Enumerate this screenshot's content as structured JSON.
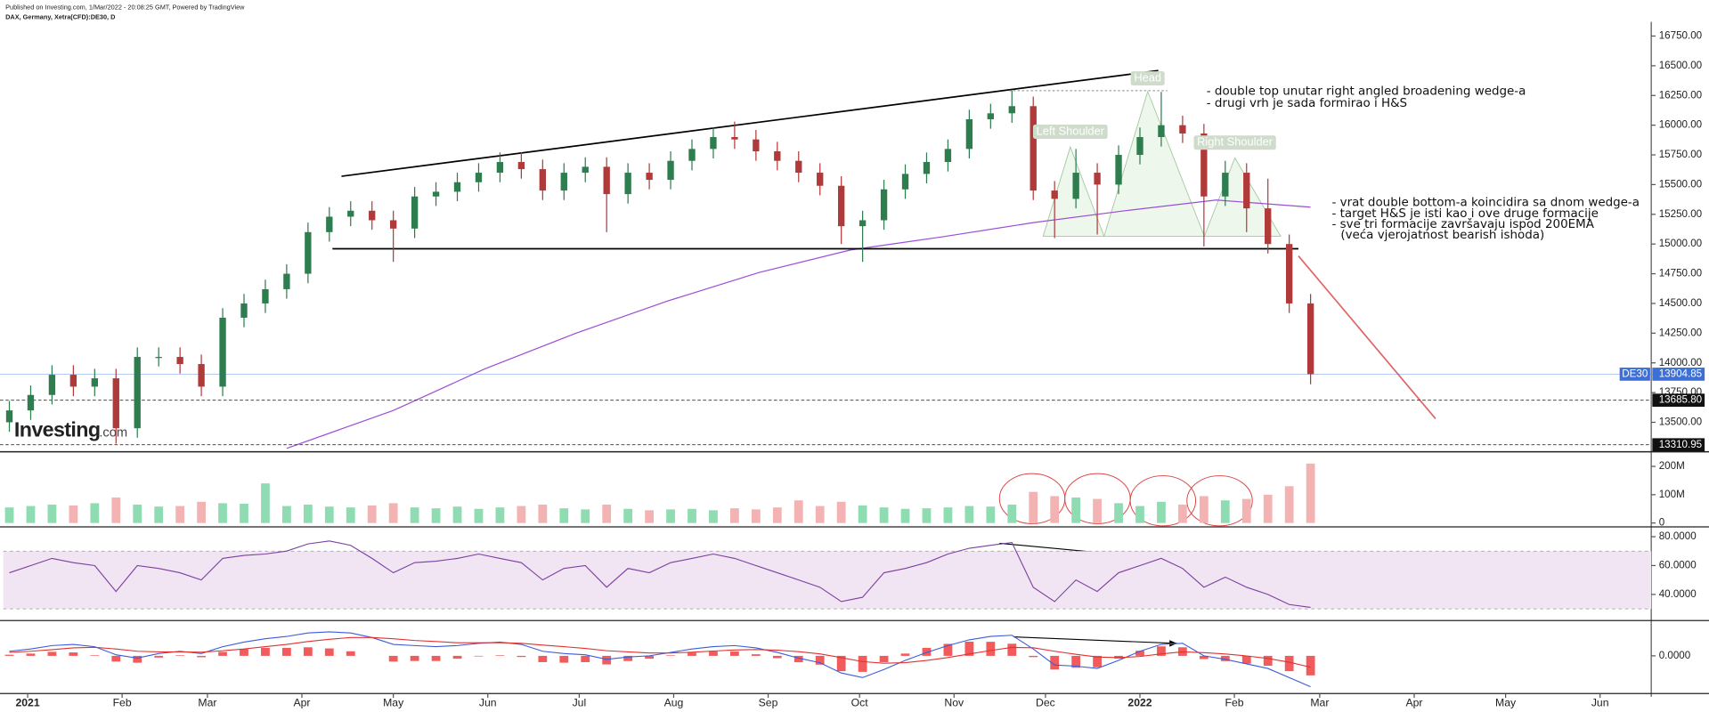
{
  "header": {
    "published": "Published on Investing.com, 1/Mar/2022 - 20:08:25 GMT, Powered by TradingView",
    "symbol": "DAX, Germany, Xetra(CFD):DE30, D"
  },
  "logo": {
    "brand": "Investing",
    "suffix": ".com"
  },
  "chart_data": {
    "type": "candlestick",
    "x": [
      -6,
      1,
      8,
      15,
      22,
      29,
      36,
      43,
      50,
      57,
      64,
      71,
      78,
      85,
      92,
      99,
      106,
      113,
      120,
      127,
      134,
      141,
      148,
      155,
      162,
      169,
      176,
      183,
      190,
      197,
      204,
      211,
      218,
      225,
      232,
      239,
      246,
      253,
      260,
      267,
      274,
      281,
      288,
      295,
      302,
      309,
      316,
      323,
      330,
      337,
      344,
      351,
      358,
      365,
      372,
      379,
      386,
      393,
      400,
      407,
      414,
      421
    ],
    "open": [
      13500,
      13600,
      13730,
      13900,
      13800,
      13870,
      13450,
      14050,
      14050,
      13990,
      13800,
      14380,
      14500,
      14620,
      14750,
      15100,
      15230,
      15280,
      15200,
      15130,
      15400,
      15440,
      15520,
      15600,
      15690,
      15630,
      15450,
      15600,
      15650,
      15420,
      15600,
      15540,
      15700,
      15800,
      15900,
      15880,
      15780,
      15700,
      15600,
      15490,
      15150,
      15200,
      15460,
      15590,
      15690,
      15800,
      16050,
      16100,
      16160,
      15450,
      15380,
      15600,
      15500,
      15750,
      15900,
      16000,
      15930,
      15400,
      15600,
      15300,
      15000,
      14500
    ],
    "high": [
      13680,
      13810,
      13980,
      13980,
      13950,
      13950,
      14130,
      14130,
      14130,
      14070,
      14460,
      14580,
      14700,
      14830,
      15180,
      15310,
      15360,
      15360,
      15280,
      15480,
      15520,
      15600,
      15680,
      15770,
      15770,
      15710,
      15680,
      15730,
      15730,
      15680,
      15680,
      15780,
      15880,
      15980,
      16030,
      15960,
      15860,
      15780,
      15680,
      15570,
      15280,
      15540,
      15670,
      15770,
      15880,
      16130,
      16180,
      16290,
      16240,
      15530,
      15800,
      15680,
      15830,
      15980,
      16280,
      16080,
      16010,
      15700,
      15680,
      15550,
      15080,
      14580
    ],
    "low": [
      13420,
      13520,
      13650,
      13720,
      13720,
      13320,
      13370,
      13970,
      13910,
      13720,
      13720,
      14300,
      14420,
      14540,
      14670,
      15020,
      15150,
      15120,
      14850,
      15050,
      15320,
      15360,
      15440,
      15520,
      15550,
      15370,
      15370,
      15520,
      15100,
      15340,
      15460,
      15460,
      15620,
      15720,
      15800,
      15700,
      15620,
      15520,
      15410,
      15000,
      14850,
      15120,
      15380,
      15510,
      15610,
      15720,
      15970,
      16020,
      15370,
      15050,
      15300,
      15080,
      15420,
      15670,
      15820,
      15850,
      14980,
      15320,
      15100,
      14920,
      14420,
      13820
    ],
    "close": [
      13600,
      13730,
      13900,
      13800,
      13870,
      13450,
      14050,
      14050,
      13990,
      13800,
      14380,
      14500,
      14620,
      14750,
      15100,
      15230,
      15280,
      15200,
      15130,
      15400,
      15440,
      15520,
      15600,
      15690,
      15630,
      15450,
      15600,
      15650,
      15420,
      15600,
      15540,
      15700,
      15800,
      15900,
      15880,
      15780,
      15700,
      15600,
      15490,
      15150,
      15200,
      15460,
      15590,
      15690,
      15800,
      16050,
      16100,
      16160,
      15450,
      15380,
      15600,
      15500,
      15750,
      15900,
      16000,
      15930,
      15400,
      15600,
      15300,
      15000,
      14500,
      13904.85
    ],
    "up_color": "#2e7d4f",
    "down_color": "#b03a3a",
    "xlim": [
      -8,
      531
    ],
    "xticks": [
      {
        "value": 0,
        "label": "2021"
      },
      {
        "value": 31,
        "label": "Feb"
      },
      {
        "value": 59,
        "label": "Mar"
      },
      {
        "value": 90,
        "label": "Apr"
      },
      {
        "value": 120,
        "label": "May"
      },
      {
        "value": 151,
        "label": "Jun"
      },
      {
        "value": 181,
        "label": "Jul"
      },
      {
        "value": 212,
        "label": "Aug"
      },
      {
        "value": 243,
        "label": "Sep"
      },
      {
        "value": 273,
        "label": "Oct"
      },
      {
        "value": 304,
        "label": "Nov"
      },
      {
        "value": 334,
        "label": "Dec"
      },
      {
        "value": 365,
        "label": "2022"
      },
      {
        "value": 396,
        "label": "Feb"
      },
      {
        "value": 424,
        "label": "Mar"
      },
      {
        "value": 455,
        "label": "Apr"
      },
      {
        "value": 485,
        "label": "May"
      },
      {
        "value": 516,
        "label": "Jun"
      }
    ],
    "ylim": [
      13270,
      16870
    ],
    "yticks": [
      {
        "value": 13500,
        "label": "13500.00"
      },
      {
        "value": 13750,
        "label": "13750.00"
      },
      {
        "value": 14000,
        "label": "14000.00"
      },
      {
        "value": 14250,
        "label": "14250.00"
      },
      {
        "value": 14500,
        "label": "14500.00"
      },
      {
        "value": 14750,
        "label": "14750.00"
      },
      {
        "value": 15000,
        "label": "15000.00"
      },
      {
        "value": 15250,
        "label": "15250.00"
      },
      {
        "value": 15500,
        "label": "15500.00"
      },
      {
        "value": 15750,
        "label": "15750.00"
      },
      {
        "value": 16000,
        "label": "16000.00"
      },
      {
        "value": 16250,
        "label": "16250.00"
      },
      {
        "value": 16500,
        "label": "16500.00"
      },
      {
        "value": 16750,
        "label": "16750.00"
      }
    ],
    "last_price": {
      "tag": "DE30",
      "value": 13904.85,
      "label": "13904.85",
      "color": "#3d6fd6"
    },
    "levels": [
      {
        "value": 13685.8,
        "label": "13685.80"
      },
      {
        "value": 13310.95,
        "label": "13310.95"
      }
    ],
    "ema": {
      "color": "#9c4dd8",
      "x": [
        85,
        120,
        150,
        180,
        210,
        240,
        270,
        300,
        330,
        360,
        390,
        421
      ],
      "values": [
        13280,
        13600,
        13950,
        14250,
        14520,
        14760,
        14950,
        15060,
        15180,
        15280,
        15370,
        15310
      ]
    },
    "trendlines": [
      {
        "color": "#000000",
        "dash": false,
        "x": [
          103,
          371
        ],
        "y": [
          15570,
          16460
        ]
      },
      {
        "color": "#000000",
        "dash": false,
        "x": [
          100,
          417
        ],
        "y": [
          14960,
          14960
        ]
      },
      {
        "color": "#888888",
        "dash": true,
        "x": [
          322,
          374
        ],
        "y": [
          16290,
          16290
        ]
      },
      {
        "color": "#e06666",
        "dash": false,
        "x": [
          417,
          462
        ],
        "y": [
          14900,
          13530
        ]
      }
    ],
    "annotations": [
      "Head",
      "Left Shoulder",
      "Right Shoulder",
      "- double top unutar right angled broadening wedge-a",
      "- drugi vrh je sada formirao i H&S",
      "- vrat double bottom-a koincidira sa dnom wedge-a",
      "- target H&S je isti kao i ove druge formacije",
      "- sve tri formacije završavaju ispod 200EMA",
      "(veća vjerojatnost bearish ishoda)"
    ],
    "volume": {
      "up_color": "#8fdcb3",
      "down_color": "#f4b3b3",
      "values": [
        55,
        60,
        65,
        62,
        70,
        90,
        65,
        58,
        60,
        75,
        70,
        68,
        140,
        60,
        65,
        58,
        55,
        62,
        70,
        55,
        52,
        58,
        50,
        55,
        60,
        65,
        52,
        48,
        65,
        50,
        45,
        48,
        50,
        45,
        52,
        48,
        55,
        80,
        60,
        75,
        62,
        55,
        50,
        52,
        55,
        60,
        58,
        65,
        110,
        95,
        90,
        85,
        70,
        60,
        75,
        65,
        95,
        80,
        85,
        100,
        130,
        210
      ],
      "ylim": [
        -10,
        240
      ],
      "yticks": [
        0,
        {
          "value": 100,
          "label": "100M"
        },
        {
          "value": 200,
          "label": "200M"
        }
      ]
    },
    "rsi": {
      "color": "#7b3fa0",
      "band_color": "#f1e4f3",
      "band": [
        30,
        70
      ],
      "values": [
        55,
        60,
        65,
        62,
        60,
        42,
        60,
        58,
        55,
        50,
        65,
        67,
        68,
        70,
        75,
        77,
        74,
        65,
        55,
        62,
        63,
        65,
        68,
        65,
        62,
        50,
        58,
        60,
        45,
        58,
        55,
        62,
        65,
        68,
        65,
        60,
        55,
        50,
        45,
        35,
        38,
        55,
        58,
        62,
        68,
        72,
        74,
        76,
        45,
        35,
        50,
        42,
        55,
        60,
        65,
        58,
        45,
        52,
        45,
        40,
        33,
        31
      ],
      "ylim": [
        23.4,
        84.5
      ],
      "yticks": [
        {
          "value": 40,
          "label": "40.0000"
        },
        {
          "value": 60,
          "label": "60.0000"
        },
        {
          "value": 80,
          "label": "80.0000"
        }
      ]
    },
    "macd": {
      "macd_color": "#3b5bdb",
      "signal_color": "#e03131",
      "hist_color": "#f03e3e",
      "macd": [
        40,
        60,
        90,
        100,
        80,
        10,
        -20,
        20,
        40,
        20,
        80,
        120,
        150,
        170,
        200,
        210,
        200,
        160,
        100,
        90,
        80,
        90,
        110,
        120,
        100,
        40,
        20,
        10,
        -30,
        -10,
        0,
        30,
        60,
        80,
        90,
        70,
        30,
        -20,
        -60,
        -150,
        -190,
        -120,
        -40,
        30,
        90,
        140,
        170,
        180,
        60,
        -80,
        -90,
        -110,
        -40,
        40,
        100,
        110,
        0,
        -30,
        -70,
        -110,
        -190,
        -270
      ],
      "signal": [
        30,
        40,
        55,
        70,
        75,
        60,
        40,
        35,
        35,
        32,
        45,
        60,
        80,
        100,
        125,
        145,
        160,
        160,
        150,
        135,
        125,
        115,
        115,
        115,
        110,
        95,
        80,
        65,
        45,
        35,
        25,
        25,
        32,
        42,
        52,
        56,
        50,
        36,
        17,
        -16,
        -50,
        -65,
        -60,
        -40,
        -15,
        16,
        47,
        74,
        71,
        40,
        14,
        -10,
        -16,
        -5,
        17,
        35,
        28,
        16,
        -1,
        -23,
        -56,
        -99
      ],
      "histogram": [
        10,
        20,
        35,
        30,
        5,
        -50,
        -60,
        -15,
        5,
        -12,
        35,
        60,
        70,
        70,
        75,
        65,
        40,
        0,
        -50,
        -45,
        -45,
        -25,
        -5,
        5,
        -10,
        -55,
        -60,
        -55,
        -75,
        -45,
        -25,
        5,
        28,
        38,
        38,
        14,
        -20,
        -56,
        -77,
        -134,
        -140,
        -55,
        20,
        70,
        105,
        124,
        123,
        106,
        -11,
        -120,
        -104,
        -100,
        -24,
        45,
        83,
        75,
        -28,
        -46,
        -69,
        -87,
        -134,
        -171
      ],
      "ylim": [
        -320,
        290
      ],
      "yticks": [
        {
          "value": 0,
          "label": "0.0000"
        }
      ]
    }
  }
}
